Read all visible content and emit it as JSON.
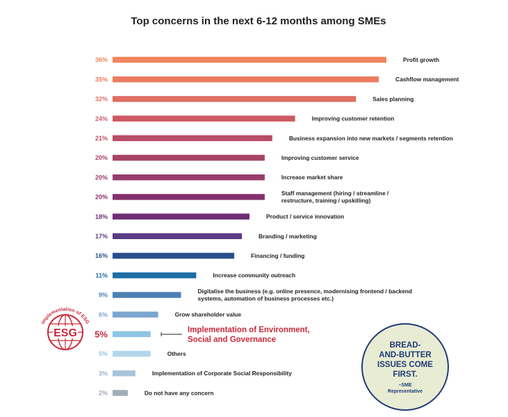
{
  "chart_data": {
    "type": "bar",
    "orientation": "horizontal",
    "title": "Top concerns in the next 6-12 months among SMEs",
    "value_unit": "%",
    "xlim": [
      0,
      36
    ],
    "items": [
      {
        "value": 36,
        "label": "36%",
        "text": [
          "Profit growth"
        ],
        "color": "#f0845c",
        "pct_color": "#f0845c"
      },
      {
        "value": 35,
        "label": "35%",
        "text": [
          "Cashflow management"
        ],
        "color": "#ea7b60",
        "pct_color": "#ea7b60"
      },
      {
        "value": 32,
        "label": "32%",
        "text": [
          "Sales planning"
        ],
        "color": "#df6e62",
        "pct_color": "#df6e62"
      },
      {
        "value": 24,
        "label": "24%",
        "text": [
          "Improving customer retention"
        ],
        "color": "#cd5a64",
        "pct_color": "#cd5a64"
      },
      {
        "value": 21,
        "label": "21%",
        "text": [
          "Business expansion into new markets / segments retention"
        ],
        "color": "#b84c66",
        "pct_color": "#b84c66"
      },
      {
        "value": 20,
        "label": "20%",
        "text": [
          "Improving customer service"
        ],
        "color": "#a84468",
        "pct_color": "#a84468"
      },
      {
        "value": 20,
        "label": "20%",
        "text": [
          "Increase market share"
        ],
        "color": "#973c6b",
        "pct_color": "#973c6b"
      },
      {
        "value": 20,
        "label": "20%",
        "text": [
          "Staff management (hiring / streamline /",
          "restructure, training / upskilling)"
        ],
        "color": "#85306c",
        "pct_color": "#85306c"
      },
      {
        "value": 18,
        "label": "18%",
        "text": [
          "Product / service innovation"
        ],
        "color": "#6f2e74",
        "pct_color": "#6f2e74"
      },
      {
        "value": 17,
        "label": "17%",
        "text": [
          "Branding / marketing"
        ],
        "color": "#5b3b85",
        "pct_color": "#5b3b85"
      },
      {
        "value": 16,
        "label": "16%",
        "text": [
          "Financing / funding"
        ],
        "color": "#2b4f8e",
        "pct_color": "#2b4f8e"
      },
      {
        "value": 11,
        "label": "11%",
        "text": [
          "Increase community outreach"
        ],
        "color": "#1e6ea6",
        "pct_color": "#1e6ea6"
      },
      {
        "value": 9,
        "label": "9%",
        "text": [
          "Digitalise the business (e.g. online presence, modernising frontend / backend",
          "systems, automation of business processes etc.)"
        ],
        "color": "#4d82b4",
        "pct_color": "#4d82b4"
      },
      {
        "value": 6,
        "label": "6%",
        "text": [
          "Grow shareholder value"
        ],
        "color": "#7ba6cf",
        "pct_color": "#7ba6cf"
      },
      {
        "value": 5,
        "label": "5%",
        "text": [
          "Implementation of Environment,",
          "Social and Governance"
        ],
        "color": "#8fc5e4",
        "pct_color": "#c8283a",
        "highlight": true
      },
      {
        "value": 5,
        "label": "5%",
        "text": [
          "Others"
        ],
        "color": "#b4d6ec",
        "pct_color": "#9cc4e0"
      },
      {
        "value": 3,
        "label": "3%",
        "text": [
          "Implementation of Corporate Social Responsibility"
        ],
        "color": "#a9c5dc",
        "pct_color": "#a0b4c8"
      },
      {
        "value": 2,
        "label": "2%",
        "text": [
          "Do not have any concern"
        ],
        "color": "#a0aeba",
        "pct_color": "#a0aeba"
      }
    ]
  },
  "esg_badge": {
    "arc_text": "Implementation of ESG",
    "center_text": "ESG",
    "color": "#c8283a"
  },
  "quote_badge": {
    "lines": [
      "BREAD-",
      "AND-BUTTER",
      "ISSUES COME",
      "FIRST."
    ],
    "attribution_lines": [
      "–SME",
      "Representative"
    ],
    "fill": "#e8ecd2",
    "stroke": "#1f3b78"
  }
}
